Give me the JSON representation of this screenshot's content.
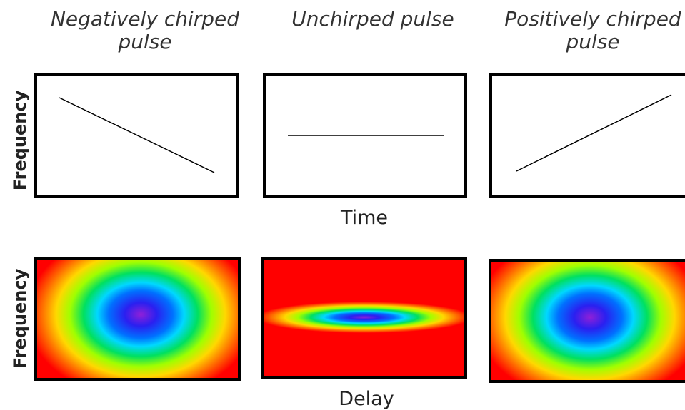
{
  "columns": [
    {
      "title": [
        "Negatively chirped",
        "pulse"
      ]
    },
    {
      "title": [
        "Unchirped pulse"
      ]
    },
    {
      "title": [
        "Positively chirped",
        "pulse"
      ]
    }
  ],
  "top_row": {
    "y_label": "Frequency",
    "x_label": "Time"
  },
  "bottom_row": {
    "y_label": "Frequency",
    "x_label": "Delay"
  }
}
